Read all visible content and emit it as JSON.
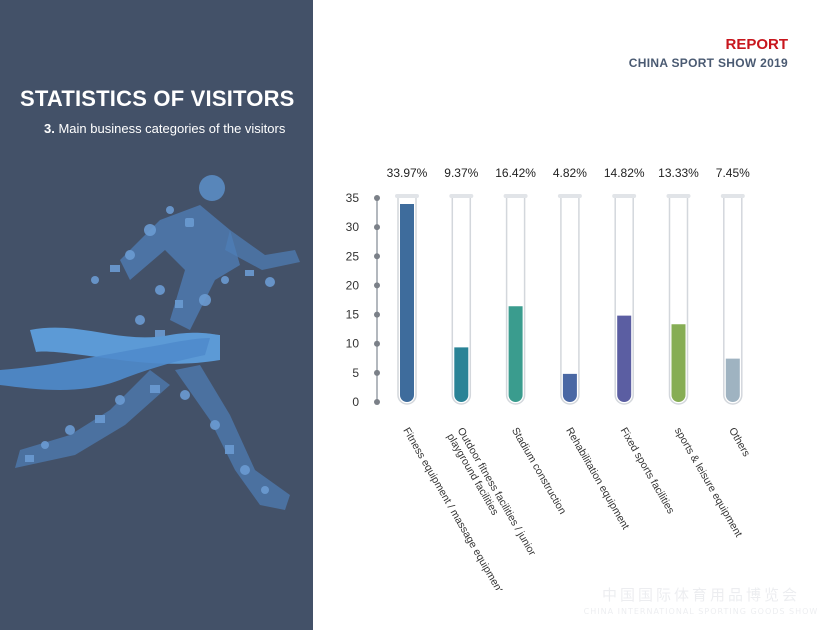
{
  "header": {
    "report": "REPORT",
    "show": "CHINA SPORT SHOW 2019"
  },
  "section": {
    "title": "STATISTICS OF VISITORS",
    "subtitle_num": "3.",
    "subtitle": "Main business categories of the visitors"
  },
  "colors": {
    "panel": "#435168",
    "accent_red": "#c8161d",
    "ribbon": "#5c9ad6"
  },
  "watermark": {
    "line1": "中国国际体育用品博览会",
    "line2": "CHINA INTERNATIONAL SPORTING GOODS SHOW"
  },
  "chart_data": {
    "type": "bar",
    "title": "",
    "xlabel": "",
    "ylabel": "",
    "ylim": [
      0,
      35
    ],
    "yticks": [
      "0",
      "5",
      "10",
      "15",
      "20",
      "25",
      "30",
      "35"
    ],
    "grid": false,
    "categories": [
      "Fitness equipment / massage equipment",
      "Outdoor fitness facilities / junior playground facilities",
      "Stadium construction",
      "Rehabilitation equipment",
      "Fixed sports facilities",
      "sports & leisure equipment",
      "Others"
    ],
    "category_lines": [
      [
        "Fitness equipment / massage equipment"
      ],
      [
        "Outdoor fitness facilities / junior",
        "playground facilities"
      ],
      [
        "Stadium construction"
      ],
      [
        "Rehabilitation equipment"
      ],
      [
        "Fixed sports facilities"
      ],
      [
        "sports & leisure equipment"
      ],
      [
        "Others"
      ]
    ],
    "values": [
      33.97,
      9.37,
      16.42,
      4.82,
      14.82,
      13.33,
      7.45
    ],
    "labels": [
      "33.97%",
      "9.37%",
      "16.42%",
      "4.82%",
      "14.82%",
      "13.33%",
      "7.45%"
    ],
    "colors": [
      "#3e6c9c",
      "#2a8396",
      "#3a9c8e",
      "#4a68a4",
      "#5b5ea2",
      "#86ad54",
      "#9fb3c1"
    ]
  }
}
